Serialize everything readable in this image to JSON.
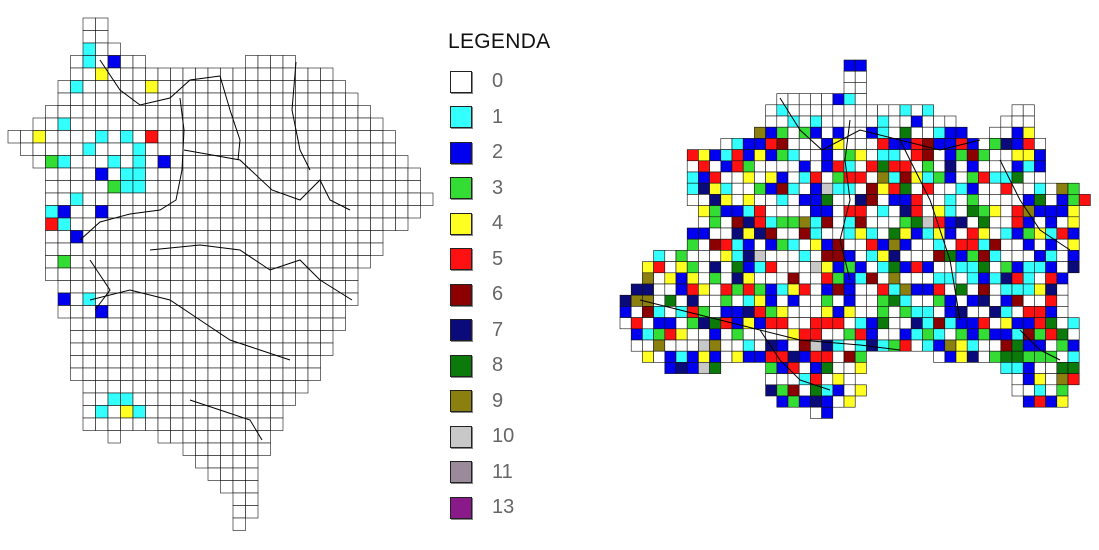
{
  "legend": {
    "title": "LEGENDA",
    "items": [
      {
        "label": "0",
        "color": "#ffffff"
      },
      {
        "label": "1",
        "color": "#33ffff"
      },
      {
        "label": "2",
        "color": "#0000ee"
      },
      {
        "label": "3",
        "color": "#33dd33"
      },
      {
        "label": "4",
        "color": "#ffff22"
      },
      {
        "label": "5",
        "color": "#ff1111"
      },
      {
        "label": "6",
        "color": "#8b0000"
      },
      {
        "label": "7",
        "color": "#0a0a7a"
      },
      {
        "label": "8",
        "color": "#0b7a0b"
      },
      {
        "label": "9",
        "color": "#8b7f10"
      },
      {
        "label": "10",
        "color": "#c8c8c8"
      },
      {
        "label": "11",
        "color": "#9a8a9a"
      },
      {
        "label": "13",
        "color": "#8a1a8a"
      }
    ]
  },
  "maps": {
    "left": {
      "description_colors": [
        "#ffffff",
        "#33ffff",
        "#0000ee",
        "#33dd33",
        "#ffff22",
        "#ff1111"
      ]
    },
    "right": {
      "description_colors": [
        "#ffffff",
        "#33ffff",
        "#0000ee",
        "#33dd33",
        "#ffff22",
        "#ff1111",
        "#8b0000",
        "#0a0a7a",
        "#0b7a0b",
        "#8b7f10",
        "#c8c8c8"
      ]
    }
  }
}
